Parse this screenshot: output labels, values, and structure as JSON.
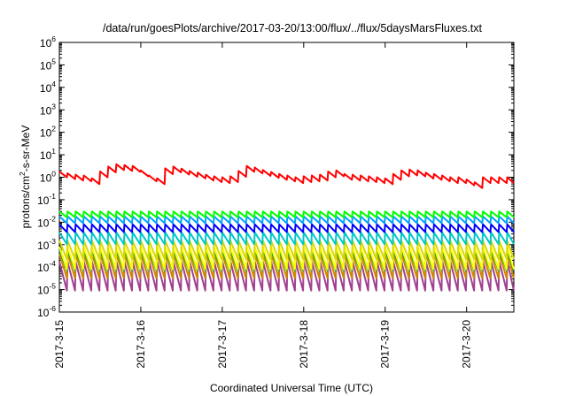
{
  "chart_data": {
    "type": "line",
    "title": "/data/run/goesPlots/archive/2017-03-20/13:00/flux/../flux/5daysMarsFluxes.txt",
    "xlabel": "Coordinated Universal Time (UTC)",
    "ylabel": "protons/cm2-s-sr-MeV",
    "ylabel_parts": {
      "base": "protons/cm",
      "sup": "2",
      "rest": "-s-sr-MeV"
    },
    "y_scale": "log",
    "ylim_exponents": [
      -6,
      6
    ],
    "y_tick_base": "10",
    "y_tick_exponents": [
      "6",
      "5",
      "4",
      "3",
      "2",
      "1",
      "0",
      "-1",
      "-2",
      "-3",
      "-4",
      "-5",
      "-6"
    ],
    "x_tick_labels": [
      "2017-3-15",
      "2017-3-16",
      "2017-3-17",
      "2017-3-18",
      "2017-3-19",
      "2017-3-20"
    ],
    "x_tick_days": [
      0,
      1,
      2,
      3,
      4,
      5
    ],
    "xlim_days": [
      0,
      5.58
    ],
    "grid": false,
    "legend": "none",
    "sawtooth_period_days": 0.1,
    "series": [
      {
        "color": "#ff0000",
        "y_high": [
          1.8,
          1.5,
          1.3,
          1.2,
          0.9,
          1.8,
          3.0,
          3.8,
          3.5,
          3.2,
          2.0,
          1.2,
          0.9,
          2.5,
          3.0,
          2.4,
          1.9,
          1.6,
          1.3,
          1.1,
          1.0,
          1.1,
          1.9,
          3.2,
          2.7,
          2.1,
          1.7,
          1.4,
          1.2,
          1.0,
          1.1,
          1.2,
          1.3,
          1.8,
          2.0,
          1.4,
          1.3,
          1.2,
          1.1,
          1.0,
          0.9,
          1.4,
          2.0,
          2.2,
          2.0,
          1.6,
          1.4,
          1.2,
          1.0,
          1.0,
          0.8,
          0.6,
          1.0
        ],
        "dip": 0.55
      },
      {
        "color": "#00ff00",
        "y_high": [
          0.03
        ],
        "dip": 0.55
      },
      {
        "color": "#00a0ff",
        "y_high": [
          0.018
        ],
        "dip": 0.5
      },
      {
        "color": "#0000ff",
        "y_high": [
          0.008
        ],
        "dip": 0.45
      },
      {
        "color": "#00c8c8",
        "y_high": [
          0.0035
        ],
        "dip": 0.3
      },
      {
        "color": "#d8d800",
        "y_high": [
          0.0015
        ],
        "dip": 0.15
      },
      {
        "color": "#ffff00",
        "y_high": [
          0.0008
        ],
        "dip": 0.1
      },
      {
        "color": "#00a050",
        "y_high": [
          0.0006
        ],
        "dip": 0.12
      },
      {
        "color": "#cc8800",
        "y_high": [
          0.0004
        ],
        "dip": 0.08
      },
      {
        "color": "#a04090",
        "y_high": [
          0.00018
        ],
        "dip": 0.05
      }
    ]
  }
}
